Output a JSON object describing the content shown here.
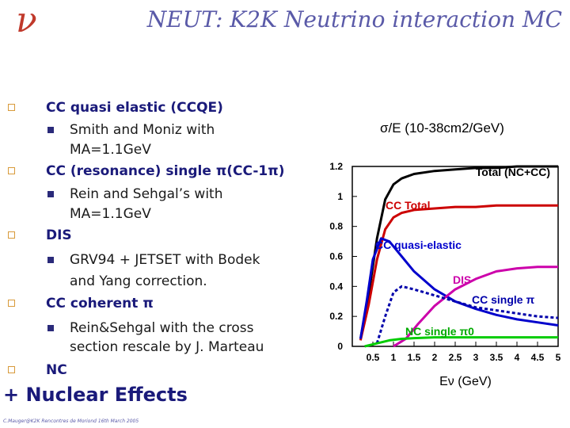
{
  "slide": {
    "logo": "ν",
    "title": "NEUT: K2K Neutrino interaction MC"
  },
  "bullets": [
    {
      "text": "CC quasi elastic (CCQE)"
    },
    {
      "text": "CC (resonance) single π(CC-1π)"
    },
    {
      "text": "DIS"
    },
    {
      "text": "CC coherent π"
    },
    {
      "text": "NC"
    }
  ],
  "subbullets": [
    {
      "lines": [
        "Smith and Moniz with",
        "MA=1.1GeV"
      ]
    },
    {
      "lines": [
        "Rein and Sehgal’s with",
        "MA=1.1GeV"
      ]
    },
    {
      "lines": [
        "GRV94 + JETSET with Bodek",
        "and Yang correction."
      ]
    },
    {
      "lines": [
        "Rein&Sehgal with the cross",
        "section rescale by J. Marteau"
      ]
    }
  ],
  "nuclear": "+ Nuclear Effects",
  "footer": "C.Mauger@K2K Rencontres de Moriond 16th March 2005",
  "chart_data": {
    "type": "line",
    "ylabel": "σ/E (10-38cm2/GeV)",
    "xlabel": "Eν (GeV)",
    "xlim": [
      0,
      5
    ],
    "ylim": [
      0,
      1.2
    ],
    "xticks": [
      "0.5",
      "1",
      "1.5",
      "2",
      "2.5",
      "3",
      "3.5",
      "4",
      "4.5",
      "5"
    ],
    "yticks": [
      "0",
      "0.2",
      "0.4",
      "0.6",
      "0.8",
      "1",
      "1.2"
    ],
    "series": [
      {
        "name": "Total (NC+CC)",
        "color": "#000000",
        "dash": false,
        "x": [
          0.2,
          0.4,
          0.6,
          0.8,
          1.0,
          1.2,
          1.5,
          2.0,
          2.5,
          3.0,
          3.5,
          4.0,
          4.5,
          5.0
        ],
        "y": [
          0.05,
          0.35,
          0.72,
          0.98,
          1.08,
          1.12,
          1.15,
          1.17,
          1.18,
          1.19,
          1.19,
          1.2,
          1.2,
          1.2
        ]
      },
      {
        "name": "CC Total",
        "color": "#cc0000",
        "dash": false,
        "x": [
          0.2,
          0.4,
          0.6,
          0.8,
          1.0,
          1.2,
          1.5,
          2.0,
          2.5,
          3.0,
          3.5,
          4.0,
          4.5,
          5.0
        ],
        "y": [
          0.04,
          0.28,
          0.58,
          0.78,
          0.86,
          0.89,
          0.91,
          0.92,
          0.93,
          0.93,
          0.94,
          0.94,
          0.94,
          0.94
        ]
      },
      {
        "name": "CC quasi-elastic",
        "color": "#0000cc",
        "dash": false,
        "x": [
          0.2,
          0.35,
          0.5,
          0.7,
          0.9,
          1.2,
          1.5,
          2.0,
          2.5,
          3.0,
          3.5,
          4.0,
          4.5,
          5.0
        ],
        "y": [
          0.05,
          0.3,
          0.58,
          0.72,
          0.7,
          0.6,
          0.5,
          0.38,
          0.3,
          0.25,
          0.21,
          0.18,
          0.16,
          0.14
        ]
      },
      {
        "name": "DIS",
        "color": "#cc00aa",
        "dash": false,
        "x": [
          1.0,
          1.3,
          1.6,
          2.0,
          2.5,
          3.0,
          3.5,
          4.0,
          4.5,
          5.0
        ],
        "y": [
          0.0,
          0.05,
          0.15,
          0.27,
          0.38,
          0.45,
          0.5,
          0.52,
          0.53,
          0.53
        ]
      },
      {
        "name": "CC single π",
        "color": "#0000aa",
        "dash": true,
        "x": [
          0.6,
          0.8,
          1.0,
          1.2,
          1.5,
          2.0,
          2.5,
          3.0,
          3.5,
          4.0,
          4.5,
          5.0
        ],
        "y": [
          0.02,
          0.2,
          0.36,
          0.4,
          0.38,
          0.34,
          0.3,
          0.26,
          0.24,
          0.22,
          0.2,
          0.19
        ]
      },
      {
        "name": "NC single π0",
        "color": "#00cc00",
        "dash": false,
        "x": [
          0.3,
          0.6,
          0.9,
          1.2,
          1.5,
          2.0,
          2.5,
          3.0,
          3.5,
          4.0,
          4.5,
          5.0
        ],
        "y": [
          0.0,
          0.02,
          0.04,
          0.05,
          0.055,
          0.06,
          0.06,
          0.06,
          0.06,
          0.06,
          0.06,
          0.06
        ]
      }
    ],
    "annotations": [
      {
        "text": "Total (NC+CC)",
        "color": "#000000"
      },
      {
        "text": "CC Total",
        "color": "#cc0000"
      },
      {
        "text": "CC quasi-elastic",
        "color": "#0000cc"
      },
      {
        "text": "DIS",
        "color": "#cc00aa"
      },
      {
        "text": "CC single π",
        "color": "#0000aa"
      },
      {
        "text": "NC single π0",
        "color": "#00aa00"
      }
    ]
  }
}
